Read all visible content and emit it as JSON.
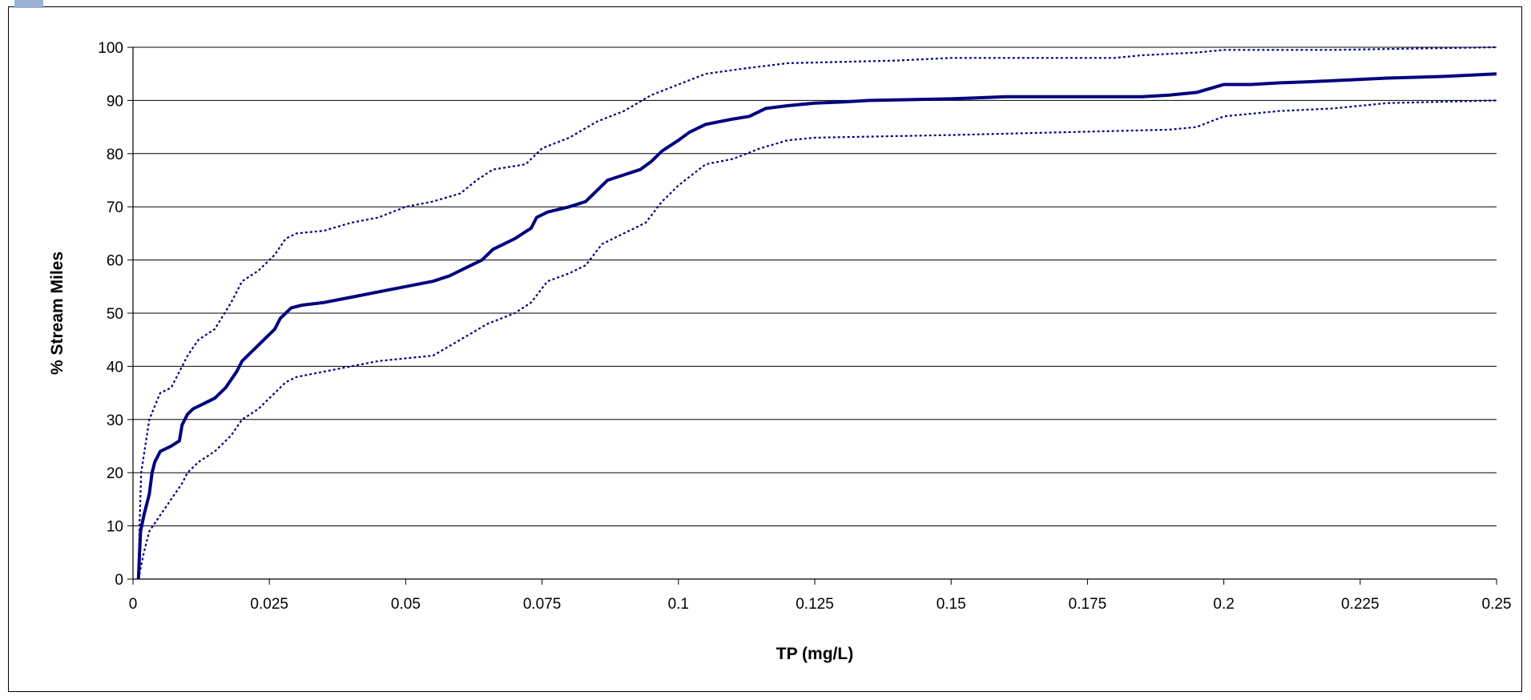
{
  "chart_data": {
    "type": "line",
    "title": "",
    "xlabel": "TP (mg/L)",
    "ylabel": "% Stream Miles",
    "xlim": [
      0,
      0.25
    ],
    "ylim": [
      0,
      100
    ],
    "x_ticks": [
      "0",
      "0.025",
      "0.05",
      "0.075",
      "0.1",
      "0.125",
      "0.15",
      "0.175",
      "0.2",
      "0.225",
      "0.25"
    ],
    "y_ticks": [
      "0",
      "10",
      "20",
      "30",
      "40",
      "50",
      "60",
      "70",
      "80",
      "90",
      "100"
    ],
    "grid": "horizontal",
    "legend": "none",
    "colors": {
      "line": "#00007f",
      "grid": "#000000"
    },
    "series": [
      {
        "style": "solid",
        "points": [
          [
            0.001,
            0
          ],
          [
            0.0012,
            5
          ],
          [
            0.0014,
            9
          ],
          [
            0.002,
            12
          ],
          [
            0.003,
            16
          ],
          [
            0.0035,
            20
          ],
          [
            0.004,
            22
          ],
          [
            0.005,
            24
          ],
          [
            0.007,
            25
          ],
          [
            0.0085,
            26
          ],
          [
            0.009,
            29
          ],
          [
            0.0095,
            30
          ],
          [
            0.01,
            31
          ],
          [
            0.011,
            32
          ],
          [
            0.013,
            33
          ],
          [
            0.015,
            34
          ],
          [
            0.017,
            36
          ],
          [
            0.019,
            39
          ],
          [
            0.02,
            41
          ],
          [
            0.022,
            43
          ],
          [
            0.024,
            45
          ],
          [
            0.026,
            47
          ],
          [
            0.027,
            49
          ],
          [
            0.029,
            51
          ],
          [
            0.031,
            51.5
          ],
          [
            0.035,
            52
          ],
          [
            0.04,
            53
          ],
          [
            0.045,
            54
          ],
          [
            0.05,
            55
          ],
          [
            0.055,
            56
          ],
          [
            0.058,
            57
          ],
          [
            0.062,
            59
          ],
          [
            0.064,
            60
          ],
          [
            0.066,
            62
          ],
          [
            0.07,
            64
          ],
          [
            0.073,
            66
          ],
          [
            0.074,
            68
          ],
          [
            0.076,
            69
          ],
          [
            0.08,
            70
          ],
          [
            0.083,
            71
          ],
          [
            0.085,
            73
          ],
          [
            0.087,
            75
          ],
          [
            0.09,
            76
          ],
          [
            0.093,
            77
          ],
          [
            0.095,
            78.5
          ],
          [
            0.097,
            80.5
          ],
          [
            0.1,
            82.5
          ],
          [
            0.102,
            84
          ],
          [
            0.105,
            85.5
          ],
          [
            0.11,
            86.5
          ],
          [
            0.113,
            87
          ],
          [
            0.116,
            88.5
          ],
          [
            0.12,
            89
          ],
          [
            0.125,
            89.5
          ],
          [
            0.13,
            89.7
          ],
          [
            0.135,
            90
          ],
          [
            0.15,
            90.3
          ],
          [
            0.155,
            90.5
          ],
          [
            0.16,
            90.7
          ],
          [
            0.185,
            90.7
          ],
          [
            0.19,
            91
          ],
          [
            0.195,
            91.5
          ],
          [
            0.2,
            93
          ],
          [
            0.205,
            93
          ],
          [
            0.21,
            93.3
          ],
          [
            0.215,
            93.5
          ],
          [
            0.22,
            93.7
          ],
          [
            0.23,
            94.2
          ],
          [
            0.24,
            94.5
          ],
          [
            0.25,
            95
          ]
        ]
      },
      {
        "style": "dotted",
        "points": [
          [
            0.001,
            0
          ],
          [
            0.0012,
            10
          ],
          [
            0.0015,
            20
          ],
          [
            0.003,
            30
          ],
          [
            0.005,
            35
          ],
          [
            0.007,
            36
          ],
          [
            0.009,
            40
          ],
          [
            0.01,
            42
          ],
          [
            0.012,
            45
          ],
          [
            0.015,
            47
          ],
          [
            0.018,
            52
          ],
          [
            0.02,
            56
          ],
          [
            0.023,
            58
          ],
          [
            0.026,
            61
          ],
          [
            0.028,
            64
          ],
          [
            0.03,
            65
          ],
          [
            0.035,
            65.5
          ],
          [
            0.04,
            67
          ],
          [
            0.045,
            68
          ],
          [
            0.05,
            70
          ],
          [
            0.055,
            71
          ],
          [
            0.06,
            72.5
          ],
          [
            0.063,
            75
          ],
          [
            0.066,
            77
          ],
          [
            0.072,
            78
          ],
          [
            0.075,
            81
          ],
          [
            0.08,
            83
          ],
          [
            0.085,
            86
          ],
          [
            0.09,
            88
          ],
          [
            0.095,
            91
          ],
          [
            0.1,
            93
          ],
          [
            0.105,
            95
          ],
          [
            0.112,
            96
          ],
          [
            0.12,
            97
          ],
          [
            0.14,
            97.5
          ],
          [
            0.15,
            98
          ],
          [
            0.18,
            98
          ],
          [
            0.185,
            98.5
          ],
          [
            0.195,
            99
          ],
          [
            0.2,
            99.5
          ],
          [
            0.22,
            99.5
          ],
          [
            0.25,
            100
          ]
        ]
      },
      {
        "style": "dotted",
        "points": [
          [
            0.001,
            0
          ],
          [
            0.002,
            5
          ],
          [
            0.003,
            9
          ],
          [
            0.005,
            12
          ],
          [
            0.007,
            15
          ],
          [
            0.009,
            18
          ],
          [
            0.01,
            20
          ],
          [
            0.012,
            22
          ],
          [
            0.015,
            24
          ],
          [
            0.018,
            27
          ],
          [
            0.02,
            30
          ],
          [
            0.023,
            32
          ],
          [
            0.026,
            35
          ],
          [
            0.028,
            37
          ],
          [
            0.03,
            38
          ],
          [
            0.035,
            39
          ],
          [
            0.04,
            40
          ],
          [
            0.045,
            41
          ],
          [
            0.05,
            41.5
          ],
          [
            0.055,
            42
          ],
          [
            0.06,
            45
          ],
          [
            0.065,
            48
          ],
          [
            0.07,
            50
          ],
          [
            0.073,
            52
          ],
          [
            0.076,
            56
          ],
          [
            0.08,
            57.5
          ],
          [
            0.083,
            59
          ],
          [
            0.086,
            63
          ],
          [
            0.09,
            65
          ],
          [
            0.094,
            67
          ],
          [
            0.097,
            71
          ],
          [
            0.1,
            74
          ],
          [
            0.105,
            78
          ],
          [
            0.11,
            79
          ],
          [
            0.115,
            81
          ],
          [
            0.12,
            82.5
          ],
          [
            0.125,
            83
          ],
          [
            0.15,
            83.5
          ],
          [
            0.17,
            84
          ],
          [
            0.19,
            84.5
          ],
          [
            0.195,
            85
          ],
          [
            0.2,
            87
          ],
          [
            0.21,
            88
          ],
          [
            0.22,
            88.5
          ],
          [
            0.23,
            89.5
          ],
          [
            0.25,
            90
          ]
        ]
      }
    ]
  }
}
